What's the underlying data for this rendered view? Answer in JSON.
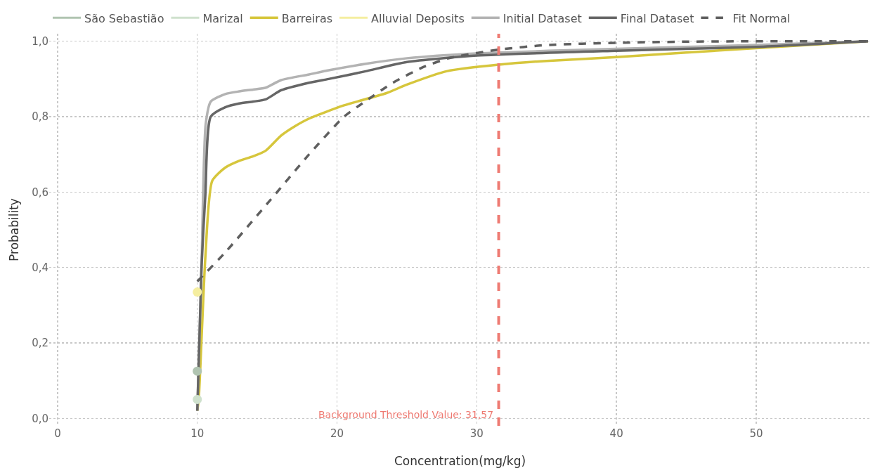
{
  "chart_data": {
    "type": "line",
    "xlabel": "Concentration(mg/kg)",
    "ylabel": "Probability",
    "xlim": [
      -0.6,
      58.2
    ],
    "xticks": [
      0,
      10,
      20,
      30,
      40,
      50
    ],
    "ylim": [
      -0.02,
      1.02
    ],
    "yticks": [
      {
        "value": 0,
        "label": "0,0"
      },
      {
        "value": 0.2,
        "label": "0,2"
      },
      {
        "value": 0.4,
        "label": "0,4"
      },
      {
        "value": 0.6,
        "label": "0,6"
      },
      {
        "value": 0.8,
        "label": "0,8"
      },
      {
        "value": 1,
        "label": "1,0"
      }
    ],
    "grid": true,
    "legend": "top left",
    "line_style": "solid",
    "series": [
      {
        "name": "São Sebastião",
        "color": "#b0c4b1",
        "marker": "circle",
        "x": [
          10
        ],
        "values": [
          0.125
        ]
      },
      {
        "name": "Marizal",
        "color": "#cfe1cd",
        "marker": "circle",
        "x": [
          10
        ],
        "values": [
          0.05
        ]
      },
      {
        "name": "Barreiras",
        "color": "#d6c63c",
        "x": [
          10,
          10.1,
          10.58,
          11.07,
          12,
          13,
          14,
          14.9,
          16,
          17,
          18,
          20.5,
          23.5,
          25,
          27.9,
          31.57,
          35,
          40,
          45,
          50,
          58
        ],
        "values": [
          0.02,
          0.05,
          0.43,
          0.63,
          0.665,
          0.683,
          0.695,
          0.71,
          0.75,
          0.775,
          0.795,
          0.83,
          0.862,
          0.885,
          0.921,
          0.938,
          0.948,
          0.958,
          0.97,
          0.982,
          1.0
        ]
      },
      {
        "name": "Alluvial Deposits",
        "color": "#f5eea0",
        "marker": "circle",
        "x": [
          10
        ],
        "values": [
          0.335
        ]
      },
      {
        "name": "Initial Dataset",
        "color": "#b3b3b3",
        "x": [
          10,
          10.3,
          10.6,
          10.96,
          12,
          13,
          14,
          14.9,
          16,
          18,
          19.4,
          22,
          25,
          30,
          40,
          50,
          58
        ],
        "values": [
          0.02,
          0.4,
          0.78,
          0.84,
          0.86,
          0.867,
          0.872,
          0.877,
          0.897,
          0.912,
          0.923,
          0.94,
          0.955,
          0.968,
          0.98,
          0.99,
          1.0
        ]
      },
      {
        "name": "Final Dataset",
        "color": "#666666",
        "x": [
          10,
          10.3,
          10.58,
          10.96,
          12,
          13,
          14,
          14.9,
          16,
          18,
          19.4,
          22,
          25,
          30,
          40,
          50,
          58
        ],
        "values": [
          0.02,
          0.4,
          0.595,
          0.8,
          0.825,
          0.835,
          0.84,
          0.846,
          0.87,
          0.89,
          0.9,
          0.92,
          0.945,
          0.962,
          0.975,
          0.985,
          1.0
        ]
      },
      {
        "name": "Fit Normal",
        "color": "#5f5f5f",
        "line_style": "dashed",
        "x": [
          10,
          12,
          15,
          18,
          20.5,
          22,
          24,
          26.2,
          28,
          31.6,
          35,
          40,
          45,
          50,
          58
        ],
        "values": [
          0.363,
          0.44,
          0.569,
          0.7,
          0.8,
          0.84,
          0.89,
          0.932,
          0.955,
          0.978,
          0.99,
          0.996,
          0.999,
          1.0,
          1.0
        ]
      }
    ],
    "ref_lines": [
      {
        "axis": "x",
        "value": 31.57,
        "label": "Background Threshold Value: 31,57",
        "color": "#ee7a72",
        "line_style": "dashed"
      }
    ]
  }
}
